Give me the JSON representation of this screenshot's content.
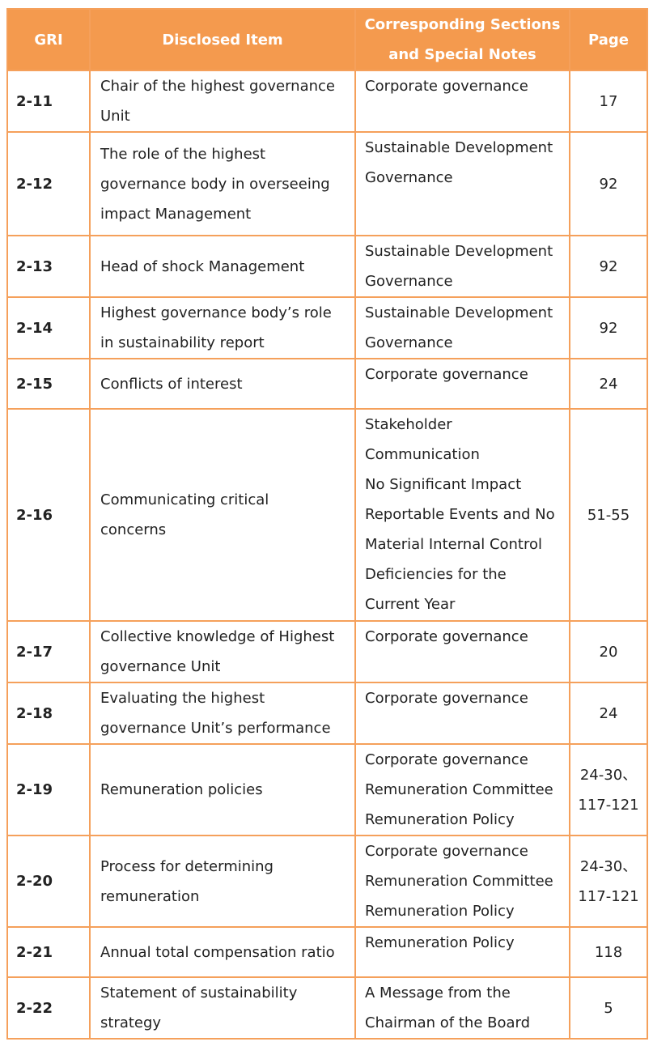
{
  "headers": {
    "gri": "GRI",
    "item": "Disclosed Item",
    "notes_line1": "Corresponding Sections",
    "notes_line2": "and Special Notes",
    "page": "Page"
  },
  "rows": [
    {
      "gri": "2-11",
      "item": [
        "Chair of the highest governance",
        "Unit"
      ],
      "notes": [
        "Corporate governance"
      ],
      "page": [
        "17"
      ]
    },
    {
      "gri": "2-12",
      "item": [
        "The role of the highest",
        "governance body in overseeing",
        "impact Management"
      ],
      "notes": [
        "Sustainable Development",
        "Governance"
      ],
      "page": [
        "92"
      ]
    },
    {
      "gri": "2-13",
      "item": [
        "Head of shock Management"
      ],
      "notes": [
        "Sustainable Development",
        "Governance"
      ],
      "page": [
        "92"
      ]
    },
    {
      "gri": "2-14",
      "item": [
        "Highest governance body’s role",
        "in sustainability report"
      ],
      "notes": [
        "Sustainable Development",
        "Governance"
      ],
      "page": [
        "92"
      ]
    },
    {
      "gri": "2-15",
      "item": [
        "Conflicts of interest"
      ],
      "notes": [
        "Corporate governance"
      ],
      "page": [
        "24"
      ]
    },
    {
      "gri": "2-16",
      "item": [
        "Communicating critical",
        "concerns"
      ],
      "notes": [
        "Stakeholder",
        "Communication",
        "No Significant Impact",
        "Reportable Events and No",
        "Material Internal Control",
        "Deficiencies for the",
        "Current Year"
      ],
      "page": [
        "51-55"
      ]
    },
    {
      "gri": "2-17",
      "item": [
        "Collective knowledge of Highest",
        "governance Unit"
      ],
      "notes": [
        "Corporate governance"
      ],
      "page": [
        "20"
      ]
    },
    {
      "gri": "2-18",
      "item": [
        "Evaluating the highest",
        "governance Unit’s performance"
      ],
      "notes": [
        "Corporate governance"
      ],
      "page": [
        "24"
      ]
    },
    {
      "gri": "2-19",
      "item": [
        "Remuneration policies"
      ],
      "notes": [
        "Corporate governance",
        "Remuneration Committee",
        "Remuneration Policy"
      ],
      "page": [
        "24-30、",
        "117-121"
      ]
    },
    {
      "gri": "2-20",
      "item": [
        "Process for determining",
        "remuneration"
      ],
      "notes": [
        "Corporate governance",
        "Remuneration Committee",
        "Remuneration Policy"
      ],
      "page": [
        "24-30、",
        "117-121"
      ]
    },
    {
      "gri": "2-21",
      "item": [
        "Annual total compensation ratio"
      ],
      "notes": [
        "Remuneration Policy"
      ],
      "page": [
        "118"
      ]
    },
    {
      "gri": "2-22",
      "item": [
        "Statement of sustainability",
        "strategy"
      ],
      "notes": [
        "A Message from the",
        "Chairman of the Board"
      ],
      "page": [
        "5"
      ]
    }
  ]
}
